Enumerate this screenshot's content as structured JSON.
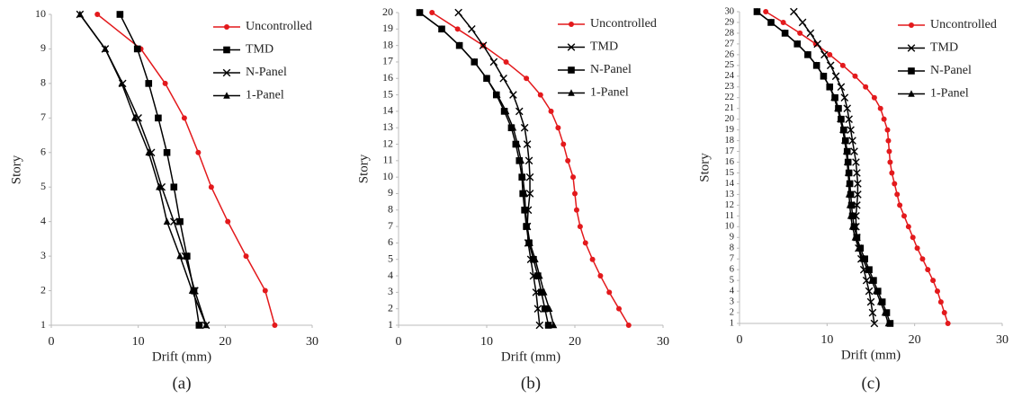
{
  "chart_data": [
    {
      "type": "line",
      "orientation": "horizontal",
      "x_label": "Drift (mm)",
      "y_label": "Story",
      "caption": "(a)",
      "xlim": [
        0,
        30
      ],
      "xticks": [
        0,
        10,
        20,
        30
      ],
      "ylim": [
        1,
        10
      ],
      "yticks": [
        1,
        2,
        3,
        4,
        5,
        6,
        7,
        8,
        9,
        10
      ],
      "y": [
        1,
        2,
        3,
        4,
        5,
        6,
        7,
        8,
        9,
        10
      ],
      "series": [
        {
          "name": "Uncontrolled",
          "color": "#e3191c",
          "marker": "circle",
          "values": [
            25.7,
            24.6,
            22.4,
            20.3,
            18.4,
            16.9,
            15.3,
            13.1,
            10.3,
            5.3
          ]
        },
        {
          "name": "TMD",
          "color": "#000000",
          "marker": "square",
          "values": [
            17.0,
            16.4,
            15.6,
            14.8,
            14.1,
            13.3,
            12.3,
            11.2,
            9.9,
            7.9
          ]
        },
        {
          "name": "N-Panel",
          "color": "#000000",
          "marker": "x",
          "values": [
            17.8,
            16.5,
            15.4,
            14.1,
            12.7,
            11.5,
            10.0,
            8.2,
            6.2,
            3.3
          ]
        },
        {
          "name": "1-Panel",
          "color": "#000000",
          "marker": "triangle",
          "values": [
            17.8,
            16.2,
            14.8,
            13.3,
            12.4,
            11.2,
            9.6,
            8.1,
            6.2,
            3.3
          ]
        }
      ]
    },
    {
      "type": "line",
      "orientation": "horizontal",
      "x_label": "Drift (mm)",
      "y_label": "Story",
      "caption": "(b)",
      "xlim": [
        0,
        30
      ],
      "xticks": [
        0,
        10,
        20,
        30
      ],
      "ylim": [
        1,
        20
      ],
      "yticks": [
        1,
        2,
        3,
        4,
        5,
        6,
        7,
        8,
        9,
        10,
        11,
        12,
        13,
        14,
        15,
        16,
        17,
        18,
        19,
        20
      ],
      "y": [
        1,
        2,
        3,
        4,
        5,
        6,
        7,
        8,
        9,
        10,
        11,
        12,
        13,
        14,
        15,
        16,
        17,
        18,
        19,
        20
      ],
      "series": [
        {
          "name": "Uncontrolled",
          "color": "#e3191c",
          "marker": "circle",
          "values": [
            26.1,
            25.0,
            23.9,
            22.9,
            22.0,
            21.2,
            20.6,
            20.2,
            20.0,
            19.8,
            19.2,
            18.7,
            18.1,
            17.3,
            16.1,
            14.5,
            12.2,
            9.6,
            6.7,
            3.8
          ]
        },
        {
          "name": "TMD",
          "color": "#000000",
          "marker": "x",
          "values": [
            16.0,
            15.8,
            15.6,
            15.3,
            15.0,
            14.7,
            14.6,
            14.7,
            14.9,
            14.9,
            14.8,
            14.6,
            14.3,
            13.7,
            13.0,
            11.9,
            10.8,
            9.6,
            8.3,
            6.8
          ]
        },
        {
          "name": "N-Panel",
          "color": "#000000",
          "marker": "square",
          "values": [
            17.0,
            16.6,
            16.2,
            15.8,
            15.3,
            14.8,
            14.5,
            14.3,
            14.1,
            14.0,
            13.7,
            13.3,
            12.8,
            12.0,
            11.1,
            10.0,
            8.6,
            6.9,
            4.9,
            2.4
          ]
        },
        {
          "name": "1-Panel",
          "color": "#000000",
          "marker": "triangle",
          "values": [
            17.6,
            17.1,
            16.5,
            16.0,
            15.5,
            14.9,
            14.6,
            14.4,
            14.3,
            14.1,
            13.9,
            13.5,
            13.0,
            12.2,
            11.2,
            10.0,
            8.6,
            6.9,
            4.9,
            2.4
          ]
        }
      ]
    },
    {
      "type": "line",
      "orientation": "horizontal",
      "x_label": "Drift (mm)",
      "y_label": "Story",
      "caption": "(c)",
      "xlim": [
        0,
        30
      ],
      "xticks": [
        0,
        10,
        20,
        30
      ],
      "ylim": [
        1,
        30
      ],
      "yticks": [
        1,
        2,
        3,
        4,
        5,
        6,
        7,
        8,
        9,
        10,
        11,
        12,
        13,
        14,
        15,
        16,
        17,
        18,
        19,
        20,
        21,
        22,
        23,
        24,
        25,
        26,
        27,
        28,
        29,
        30
      ],
      "y": [
        1,
        2,
        3,
        4,
        5,
        6,
        7,
        8,
        9,
        10,
        11,
        12,
        13,
        14,
        15,
        16,
        17,
        18,
        19,
        20,
        21,
        22,
        23,
        24,
        25,
        26,
        27,
        28,
        29,
        30
      ],
      "series": [
        {
          "name": "Uncontrolled",
          "color": "#e3191c",
          "marker": "circle",
          "values": [
            23.8,
            23.4,
            23.0,
            22.6,
            22.1,
            21.5,
            20.9,
            20.3,
            19.8,
            19.3,
            18.8,
            18.3,
            18.0,
            17.7,
            17.4,
            17.2,
            17.1,
            17.0,
            16.9,
            16.5,
            16.1,
            15.4,
            14.4,
            13.2,
            11.8,
            10.3,
            8.7,
            6.9,
            5.0,
            3.0
          ]
        },
        {
          "name": "TMD",
          "color": "#000000",
          "marker": "x",
          "values": [
            15.4,
            15.2,
            15.0,
            14.8,
            14.5,
            14.2,
            13.9,
            13.6,
            13.4,
            13.3,
            13.3,
            13.4,
            13.5,
            13.5,
            13.4,
            13.3,
            13.1,
            12.9,
            12.7,
            12.5,
            12.3,
            12.0,
            11.6,
            11.0,
            10.4,
            9.7,
            8.9,
            8.1,
            7.2,
            6.2
          ]
        },
        {
          "name": "N-Panel",
          "color": "#000000",
          "marker": "square",
          "values": [
            17.2,
            16.8,
            16.3,
            15.8,
            15.3,
            14.8,
            14.3,
            13.8,
            13.4,
            13.1,
            12.9,
            12.8,
            12.7,
            12.6,
            12.5,
            12.4,
            12.3,
            12.1,
            11.9,
            11.6,
            11.3,
            10.9,
            10.3,
            9.6,
            8.8,
            7.8,
            6.6,
            5.2,
            3.6,
            2.0
          ]
        },
        {
          "name": "1-Panel",
          "color": "#000000",
          "marker": "triangle",
          "values": [
            17.0,
            16.6,
            16.1,
            15.6,
            15.1,
            14.6,
            14.1,
            13.6,
            13.2,
            12.9,
            12.7,
            12.6,
            12.5,
            12.5,
            12.4,
            12.3,
            12.2,
            12.0,
            11.8,
            11.5,
            11.2,
            10.8,
            10.3,
            9.6,
            8.8,
            7.8,
            6.6,
            5.2,
            3.6,
            2.0
          ]
        }
      ]
    }
  ]
}
